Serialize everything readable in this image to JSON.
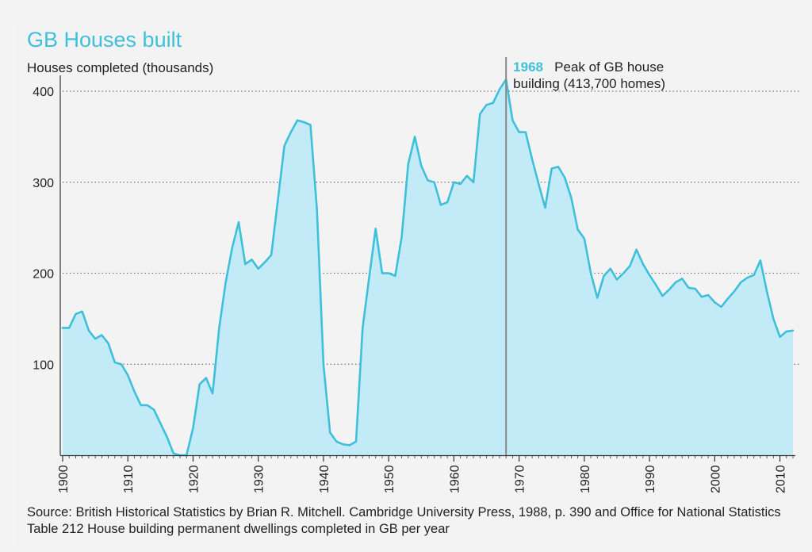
{
  "colors": {
    "accent": "#3ec0db",
    "area_fill": "#c2ebf7",
    "line": "#3ec0db",
    "grid": "#777777",
    "marker": "#888888",
    "text": "#222222",
    "background": "#f3f3f3"
  },
  "chart_data": {
    "type": "area",
    "title": "GB Houses built",
    "ylabel": "Houses completed (thousands)",
    "xlabel": "",
    "xlim": [
      1900,
      2012
    ],
    "ylim": [
      0,
      400
    ],
    "grid": "horizontal-dotted",
    "yticks": [
      {
        "value": 100,
        "label": "100"
      },
      {
        "value": 200,
        "label": "200"
      },
      {
        "value": 300,
        "label": "300"
      },
      {
        "value": 400,
        "label": "400"
      }
    ],
    "xticks": [
      {
        "value": 1900,
        "label": "1900"
      },
      {
        "value": 1910,
        "label": "1910"
      },
      {
        "value": 1920,
        "label": "1920"
      },
      {
        "value": 1930,
        "label": "1930"
      },
      {
        "value": 1940,
        "label": "1940"
      },
      {
        "value": 1950,
        "label": "1950"
      },
      {
        "value": 1960,
        "label": "1960"
      },
      {
        "value": 1970,
        "label": "1970"
      },
      {
        "value": 1980,
        "label": "1980"
      },
      {
        "value": 1990,
        "label": "1990"
      },
      {
        "value": 2000,
        "label": "2000"
      },
      {
        "value": 2010,
        "label": "2010"
      }
    ],
    "x": [
      1900,
      1901,
      1902,
      1903,
      1904,
      1905,
      1906,
      1907,
      1908,
      1909,
      1910,
      1911,
      1912,
      1913,
      1914,
      1915,
      1916,
      1917,
      1918,
      1919,
      1920,
      1921,
      1922,
      1923,
      1924,
      1925,
      1926,
      1927,
      1928,
      1929,
      1930,
      1931,
      1932,
      1933,
      1934,
      1935,
      1936,
      1937,
      1938,
      1939,
      1940,
      1941,
      1942,
      1943,
      1944,
      1945,
      1946,
      1947,
      1948,
      1949,
      1950,
      1951,
      1952,
      1953,
      1954,
      1955,
      1956,
      1957,
      1958,
      1959,
      1960,
      1961,
      1962,
      1963,
      1964,
      1965,
      1966,
      1967,
      1968,
      1969,
      1970,
      1971,
      1972,
      1973,
      1974,
      1975,
      1976,
      1977,
      1978,
      1979,
      1980,
      1981,
      1982,
      1983,
      1984,
      1985,
      1986,
      1987,
      1988,
      1989,
      1990,
      1991,
      1992,
      1993,
      1994,
      1995,
      1996,
      1997,
      1998,
      1999,
      2000,
      2001,
      2002,
      2003,
      2004,
      2005,
      2006,
      2007,
      2008,
      2009,
      2010,
      2011,
      2012
    ],
    "values": [
      140,
      140,
      155,
      158,
      137,
      128,
      132,
      123,
      102,
      100,
      88,
      70,
      55,
      55,
      50,
      35,
      20,
      2,
      0,
      0,
      30,
      78,
      85,
      68,
      140,
      190,
      228,
      256,
      210,
      215,
      205,
      212,
      220,
      280,
      340,
      355,
      368,
      366,
      363,
      270,
      100,
      25,
      15,
      12,
      11,
      15,
      140,
      195,
      249,
      200,
      200,
      197,
      240,
      320,
      350,
      318,
      302,
      300,
      275,
      278,
      300,
      298,
      307,
      300,
      375,
      385,
      387,
      402,
      413,
      368,
      355,
      355,
      325,
      298,
      272,
      315,
      317,
      305,
      283,
      248,
      238,
      200,
      173,
      197,
      205,
      193,
      200,
      208,
      226,
      210,
      198,
      187,
      175,
      182,
      190,
      194,
      184,
      183,
      174,
      176,
      168,
      163,
      172,
      180,
      190,
      195,
      198,
      214,
      180,
      150,
      130,
      136,
      137
    ],
    "annotation": {
      "x": 1968,
      "year_label": "1968",
      "text_line1": "Peak of GB house",
      "text_line2": "building (413,700 homes)"
    }
  },
  "source": "Source: British Historical Statistics by Brian R. Mitchell. Cambridge University Press, 1988, p. 390 and Office for National Statistics Table 212 House building permanent dwellings completed in GB per year"
}
